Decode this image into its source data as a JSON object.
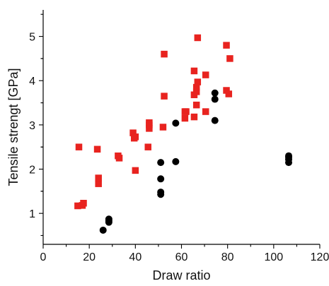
{
  "chart_data": {
    "type": "scatter",
    "xlabel": "Draw ratio",
    "ylabel": "Tensile strengt [GPa]",
    "xlim": [
      0,
      120
    ],
    "ylim": [
      0.3,
      5.6
    ],
    "xticks": [
      0,
      20,
      40,
      60,
      80,
      100,
      120
    ],
    "yticks": [
      1,
      2,
      3,
      4,
      5
    ],
    "grid": false,
    "series": [
      {
        "marker": "square",
        "color": "#e8231f",
        "points": [
          [
            15,
            1.17
          ],
          [
            15.5,
            2.5
          ],
          [
            17,
            1.18
          ],
          [
            17.5,
            1.23
          ],
          [
            23.5,
            2.45
          ],
          [
            24,
            1.67
          ],
          [
            24,
            1.8
          ],
          [
            32.5,
            2.3
          ],
          [
            33,
            2.25
          ],
          [
            39,
            2.82
          ],
          [
            39.5,
            2.7
          ],
          [
            40,
            2.73
          ],
          [
            40,
            1.97
          ],
          [
            45.5,
            2.5
          ],
          [
            46,
            2.92
          ],
          [
            46,
            3.0
          ],
          [
            46,
            3.05
          ],
          [
            52,
            2.95
          ],
          [
            52.5,
            3.65
          ],
          [
            52.5,
            4.6
          ],
          [
            61.5,
            3.15
          ],
          [
            61.5,
            3.3
          ],
          [
            62,
            3.3
          ],
          [
            65.5,
            3.18
          ],
          [
            65.5,
            3.68
          ],
          [
            65.5,
            4.22
          ],
          [
            66.5,
            3.45
          ],
          [
            66.5,
            3.75
          ],
          [
            66.5,
            3.85
          ],
          [
            67,
            3.97
          ],
          [
            67,
            4.97
          ],
          [
            70.5,
            3.3
          ],
          [
            70.5,
            4.13
          ],
          [
            79.5,
            3.78
          ],
          [
            79.5,
            4.8
          ],
          [
            80.5,
            3.7
          ],
          [
            81,
            4.5
          ]
        ]
      },
      {
        "marker": "circle",
        "color": "#000000",
        "points": [
          [
            26,
            0.62
          ],
          [
            28.5,
            0.8
          ],
          [
            28.5,
            0.83
          ],
          [
            28.5,
            0.87
          ],
          [
            51,
            1.43
          ],
          [
            51,
            1.48
          ],
          [
            51,
            1.78
          ],
          [
            51,
            2.15
          ],
          [
            57.5,
            2.17
          ],
          [
            57.5,
            3.04
          ],
          [
            74.5,
            3.1
          ],
          [
            74.5,
            3.58
          ],
          [
            74.5,
            3.72
          ],
          [
            106.5,
            2.15
          ],
          [
            106.5,
            2.22
          ],
          [
            106.5,
            2.27
          ],
          [
            106.5,
            2.3
          ]
        ]
      }
    ]
  }
}
